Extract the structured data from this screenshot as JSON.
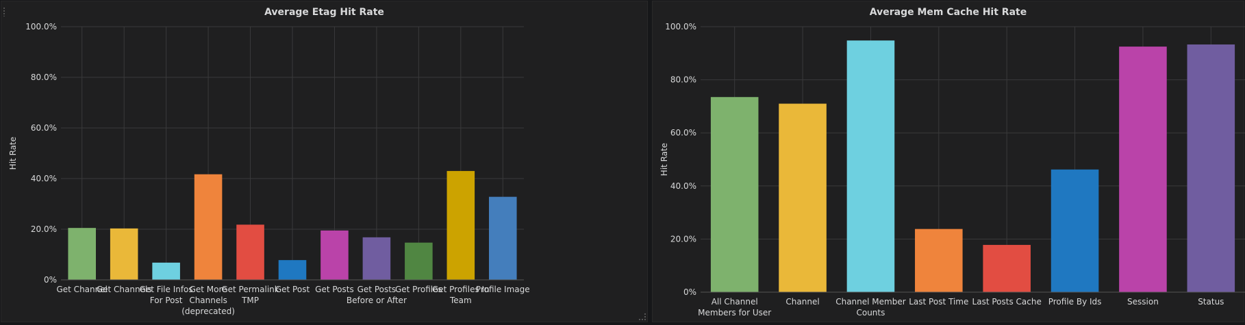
{
  "chart_data": [
    {
      "type": "bar",
      "title": "Average Etag Hit Rate",
      "ylabel": "Hit Rate",
      "xlabel": "",
      "ylim": [
        0,
        100
      ],
      "yticks": [
        "0%",
        "20.0%",
        "40.0%",
        "60.0%",
        "80.0%",
        "100.0%"
      ],
      "grid": true,
      "categories": [
        [
          "Get Channel"
        ],
        [
          "Get Channels"
        ],
        [
          "Get File Infos",
          "For Post"
        ],
        [
          "Get More",
          "Channels",
          "(deprecated)"
        ],
        [
          "Get Permalink",
          "TMP"
        ],
        [
          "Get Post"
        ],
        [
          "Get Posts"
        ],
        [
          "Get Posts",
          "Before or After"
        ],
        [
          "Get Profiles"
        ],
        [
          "Get Profiles In",
          "Team"
        ],
        [
          "Profile Image"
        ]
      ],
      "values": [
        20.5,
        20.3,
        6.8,
        41.7,
        21.8,
        7.8,
        19.5,
        16.8,
        14.7,
        43.0,
        32.8
      ],
      "colors": [
        "#7eb26d",
        "#eab839",
        "#6ed0e0",
        "#ef843c",
        "#e24d42",
        "#1f78c1",
        "#ba43a9",
        "#705da0",
        "#508642",
        "#cca300",
        "#447ebc"
      ]
    },
    {
      "type": "bar",
      "title": "Average Mem Cache Hit Rate",
      "ylabel": "Hit Rate",
      "xlabel": "",
      "ylim": [
        0,
        100
      ],
      "yticks": [
        "0%",
        "20.0%",
        "40.0%",
        "60.0%",
        "80.0%",
        "100.0%"
      ],
      "grid": true,
      "categories": [
        [
          "All Channel",
          "Members for User"
        ],
        [
          "Channel"
        ],
        [
          "Channel Member",
          "Counts"
        ],
        [
          "Last Post Time"
        ],
        [
          "Last Posts Cache"
        ],
        [
          "Profile By Ids"
        ],
        [
          "Session"
        ],
        [
          "Status"
        ]
      ],
      "values": [
        73.5,
        71.0,
        94.8,
        23.8,
        17.8,
        46.2,
        92.5,
        93.3
      ],
      "colors": [
        "#7eb26d",
        "#eab839",
        "#6ed0e0",
        "#ef843c",
        "#e24d42",
        "#1f78c1",
        "#ba43a9",
        "#705da0"
      ]
    }
  ]
}
